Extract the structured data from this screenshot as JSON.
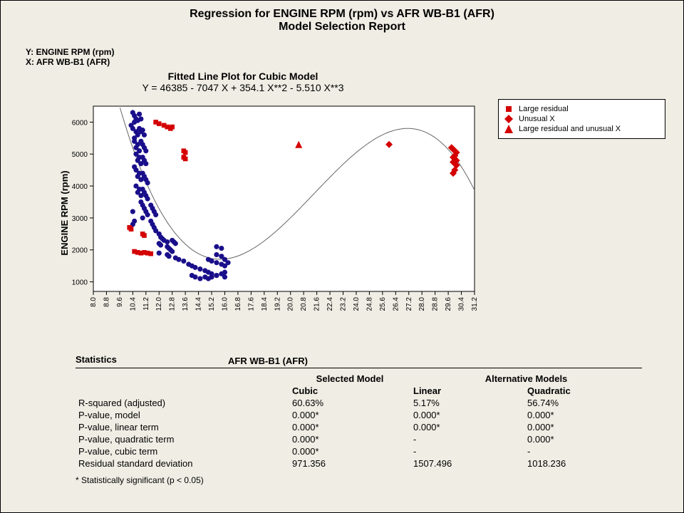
{
  "title_line1": "Regression for ENGINE RPM (rpm) vs AFR WB-B1 (AFR)",
  "title_line2": "Model Selection Report",
  "axis_note_y": "Y: ENGINE RPM (rpm)",
  "axis_note_x": "X: AFR WB-B1 (AFR)",
  "chart": {
    "title": "Fitted Line Plot for Cubic Model",
    "equation": "Y =  46385 - 7047 X + 354.1 X**2 - 5.510 X**3",
    "type": "scatter",
    "xlabel": "AFR WB-B1 (AFR)",
    "ylabel": "ENGINE RPM (rpm)",
    "xlim": [
      8.0,
      31.2
    ],
    "ylim": [
      700,
      6500
    ],
    "xticks": [
      8.0,
      8.8,
      9.6,
      10.4,
      11.2,
      12.0,
      12.8,
      13.6,
      14.4,
      15.2,
      16.0,
      16.8,
      17.6,
      18.4,
      19.2,
      20.0,
      20.8,
      21.6,
      22.4,
      23.2,
      24.0,
      24.8,
      25.6,
      26.4,
      27.2,
      28.0,
      28.8,
      29.6,
      30.4,
      31.2
    ],
    "yticks": [
      1000,
      2000,
      3000,
      4000,
      5000,
      6000
    ],
    "background_color": "#ffffff",
    "border_color": "#000000",
    "tick_fontsize": 10,
    "label_fontsize": 13,
    "marker_size": 5,
    "colors": {
      "normal": "#1a0f8a",
      "outlier": "#d40000",
      "curve": "#666666"
    },
    "curve_coeffs": [
      46385,
      -7047,
      354.1,
      -5.51
    ],
    "normal_points": [
      [
        10.4,
        6300
      ],
      [
        10.5,
        6200
      ],
      [
        10.6,
        6100
      ],
      [
        10.5,
        6000
      ],
      [
        10.7,
        6050
      ],
      [
        10.3,
        5900
      ],
      [
        10.8,
        6250
      ],
      [
        10.9,
        6100
      ],
      [
        10.4,
        5800
      ],
      [
        10.6,
        5700
      ],
      [
        10.7,
        5600
      ],
      [
        10.5,
        5500
      ],
      [
        10.8,
        5800
      ],
      [
        10.9,
        5700
      ],
      [
        11.0,
        5750
      ],
      [
        11.1,
        5600
      ],
      [
        10.5,
        5400
      ],
      [
        10.7,
        5300
      ],
      [
        10.6,
        5200
      ],
      [
        10.8,
        5100
      ],
      [
        11.0,
        5300
      ],
      [
        11.1,
        5200
      ],
      [
        10.9,
        5400
      ],
      [
        11.2,
        5100
      ],
      [
        10.6,
        5000
      ],
      [
        10.8,
        4900
      ],
      [
        10.7,
        4800
      ],
      [
        10.9,
        4700
      ],
      [
        11.0,
        4900
      ],
      [
        11.1,
        4800
      ],
      [
        11.2,
        4700
      ],
      [
        10.5,
        4600
      ],
      [
        10.6,
        4500
      ],
      [
        10.8,
        4400
      ],
      [
        10.7,
        4300
      ],
      [
        10.9,
        4200
      ],
      [
        11.0,
        4400
      ],
      [
        11.1,
        4300
      ],
      [
        11.2,
        4200
      ],
      [
        11.3,
        4100
      ],
      [
        10.6,
        4000
      ],
      [
        10.8,
        3900
      ],
      [
        10.7,
        3800
      ],
      [
        10.9,
        3700
      ],
      [
        11.0,
        3900
      ],
      [
        11.1,
        3800
      ],
      [
        11.2,
        3700
      ],
      [
        11.3,
        3600
      ],
      [
        10.9,
        3500
      ],
      [
        11.0,
        3400
      ],
      [
        11.1,
        3300
      ],
      [
        11.2,
        3200
      ],
      [
        11.3,
        3100
      ],
      [
        11.0,
        3000
      ],
      [
        11.5,
        3400
      ],
      [
        11.6,
        3300
      ],
      [
        11.7,
        3200
      ],
      [
        11.8,
        3100
      ],
      [
        11.5,
        2900
      ],
      [
        11.6,
        2800
      ],
      [
        11.7,
        2700
      ],
      [
        11.8,
        2600
      ],
      [
        12.0,
        2500
      ],
      [
        12.1,
        2400
      ],
      [
        12.2,
        2350
      ],
      [
        12.3,
        2300
      ],
      [
        12.5,
        2250
      ],
      [
        12.0,
        2200
      ],
      [
        12.1,
        2150
      ],
      [
        12.8,
        2300
      ],
      [
        12.9,
        2250
      ],
      [
        13.0,
        2200
      ],
      [
        12.5,
        2100
      ],
      [
        12.6,
        2050
      ],
      [
        12.7,
        2000
      ],
      [
        12.8,
        1950
      ],
      [
        12.0,
        1900
      ],
      [
        12.5,
        1850
      ],
      [
        12.6,
        1800
      ],
      [
        13.0,
        1750
      ],
      [
        13.2,
        1700
      ],
      [
        13.5,
        1650
      ],
      [
        13.8,
        1550
      ],
      [
        14.0,
        1500
      ],
      [
        14.2,
        1450
      ],
      [
        14.5,
        1400
      ],
      [
        14.8,
        1350
      ],
      [
        15.0,
        1300
      ],
      [
        15.2,
        1250
      ],
      [
        15.5,
        1200
      ],
      [
        15.0,
        1700
      ],
      [
        15.2,
        1650
      ],
      [
        15.5,
        1600
      ],
      [
        15.8,
        1550
      ],
      [
        16.0,
        1500
      ],
      [
        14.0,
        1200
      ],
      [
        14.2,
        1150
      ],
      [
        14.5,
        1100
      ],
      [
        14.8,
        1150
      ],
      [
        15.0,
        1100
      ],
      [
        15.2,
        1150
      ],
      [
        15.5,
        1200
      ],
      [
        15.8,
        1250
      ],
      [
        16.0,
        1300
      ],
      [
        16.0,
        1700
      ],
      [
        16.2,
        1600
      ],
      [
        15.8,
        1800
      ],
      [
        15.5,
        1850
      ],
      [
        16.0,
        1150
      ],
      [
        15.5,
        2100
      ],
      [
        15.8,
        2050
      ],
      [
        10.4,
        3200
      ],
      [
        10.5,
        2900
      ],
      [
        10.4,
        2800
      ]
    ],
    "large_residual_points": [
      [
        11.8,
        6000
      ],
      [
        12.0,
        5950
      ],
      [
        12.3,
        5900
      ],
      [
        12.5,
        5850
      ],
      [
        12.7,
        5800
      ],
      [
        12.8,
        5850
      ],
      [
        13.5,
        5100
      ],
      [
        13.6,
        5050
      ],
      [
        13.5,
        4900
      ],
      [
        13.6,
        4850
      ],
      [
        11.0,
        2500
      ],
      [
        11.1,
        2450
      ],
      [
        10.2,
        2700
      ],
      [
        10.3,
        2650
      ],
      [
        10.5,
        1950
      ],
      [
        10.7,
        1920
      ],
      [
        10.9,
        1900
      ],
      [
        11.1,
        1920
      ],
      [
        11.3,
        1900
      ],
      [
        11.5,
        1880
      ]
    ],
    "unusual_x_points": [
      [
        26.0,
        5300
      ],
      [
        29.8,
        5200
      ],
      [
        29.9,
        5150
      ],
      [
        30.0,
        5100
      ],
      [
        30.1,
        5050
      ],
      [
        30.0,
        4950
      ],
      [
        29.9,
        4900
      ],
      [
        30.0,
        4850
      ],
      [
        30.1,
        4800
      ],
      [
        29.9,
        4750
      ],
      [
        30.0,
        4700
      ],
      [
        30.1,
        4650
      ],
      [
        30.0,
        4500
      ],
      [
        29.9,
        4400
      ]
    ],
    "large_residual_and_unusual_x_points": [
      [
        20.5,
        5300
      ]
    ]
  },
  "legend": {
    "items": [
      {
        "marker": "square",
        "color": "#d40000",
        "label": "Large residual"
      },
      {
        "marker": "diamond",
        "color": "#d40000",
        "label": "Unusual X"
      },
      {
        "marker": "triangle",
        "color": "#d40000",
        "label": "Large residual and unusual X"
      }
    ]
  },
  "stats": {
    "title": "Statistics",
    "group_selected": "Selected Model",
    "group_alt": "Alternative Models",
    "col_selected": "Cubic",
    "col_alt1": "Linear",
    "col_alt2": "Quadratic",
    "rows": [
      {
        "label": "R-squared (adjusted)",
        "sel": "60.63%",
        "a1": "5.17%",
        "a2": "56.74%"
      },
      {
        "label": "P-value, model",
        "sel": "0.000*",
        "a1": "0.000*",
        "a2": "0.000*"
      },
      {
        "label": "P-value, linear term",
        "sel": "0.000*",
        "a1": "0.000*",
        "a2": "0.000*"
      },
      {
        "label": "P-value, quadratic term",
        "sel": "0.000*",
        "a1": "-",
        "a2": "0.000*"
      },
      {
        "label": "P-value, cubic term",
        "sel": "0.000*",
        "a1": "-",
        "a2": "-"
      },
      {
        "label": "Residual standard deviation",
        "sel": "971.356",
        "a1": "1507.496",
        "a2": "1018.236"
      }
    ],
    "footnote": "* Statistically significant (p < 0.05)"
  }
}
